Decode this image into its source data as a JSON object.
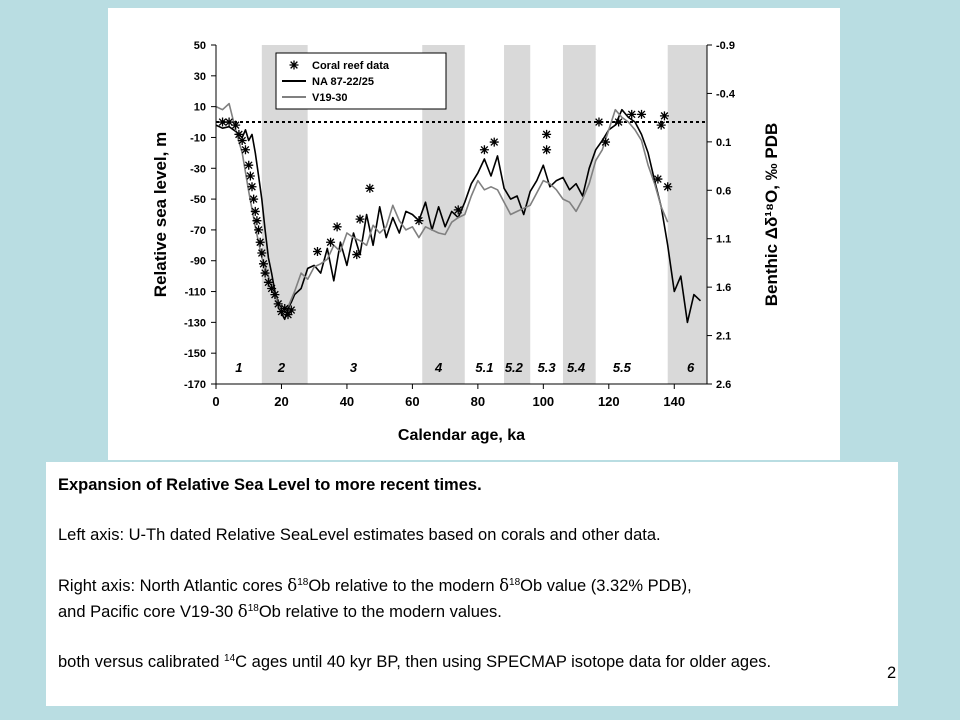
{
  "chart_data": {
    "type": "line",
    "xlabel": "Calendar age, ka",
    "ylabel": "Relative sea level, m",
    "ylabel_right": "Benthic Δδ¹⁸O, ‰ PDB",
    "xlim": [
      0,
      150
    ],
    "ylim": [
      -170,
      50
    ],
    "ylim_right": [
      -0.9,
      2.6
    ],
    "x_ticks": [
      "0",
      "20",
      "40",
      "60",
      "80",
      "100",
      "120",
      "140"
    ],
    "x_tick_values": [
      0,
      20,
      40,
      60,
      80,
      100,
      120,
      140
    ],
    "y_ticks": [
      "50",
      "30",
      "10",
      "-10",
      "-30",
      "-50",
      "-70",
      "-90",
      "-110",
      "-130",
      "-150",
      "-170"
    ],
    "y_tick_values": [
      50,
      30,
      10,
      -10,
      -30,
      -50,
      -70,
      -90,
      -110,
      -130,
      -150,
      -170
    ],
    "y_right_ticks": [
      "-0.9",
      "-0.4",
      "0.1",
      "0.6",
      "1.1",
      "1.6",
      "2.1",
      "2.6"
    ],
    "y_right_tick_values": [
      -0.9,
      -0.4,
      0.1,
      0.6,
      1.1,
      1.6,
      2.1,
      2.6
    ],
    "reference_line_y": 0,
    "legend_position": "top-left",
    "legend": [
      {
        "label": "Coral reef data",
        "marker": "asterisk"
      },
      {
        "label": "NA 87-22/25",
        "line_color": "#000000"
      },
      {
        "label": "V19-30",
        "line_color": "#808080"
      }
    ],
    "stages": [
      {
        "label": "1",
        "x": 7
      },
      {
        "label": "2",
        "x": 20,
        "x_start": 14,
        "x_end": 28
      },
      {
        "label": "3",
        "x": 42
      },
      {
        "label": "4",
        "x": 68,
        "x_start": 63,
        "x_end": 76
      },
      {
        "label": "5.1",
        "x": 82
      },
      {
        "label": "5.2",
        "x": 91,
        "x_start": 88,
        "x_end": 96
      },
      {
        "label": "5.3",
        "x": 101
      },
      {
        "label": "5.4",
        "x": 110,
        "x_start": 106,
        "x_end": 116
      },
      {
        "label": "5.5",
        "x": 124
      },
      {
        "label": "6",
        "x": 145,
        "x_start": 138,
        "x_end": 150
      }
    ],
    "series": [
      {
        "name": "NA 87-22/25",
        "color": "#000000",
        "x": [
          0,
          2,
          4,
          6,
          8,
          9,
          10,
          11,
          12,
          13,
          14,
          15,
          16,
          17,
          18,
          19,
          20,
          21,
          22,
          23,
          24,
          26,
          28,
          30,
          32,
          34,
          36,
          38,
          40,
          42,
          44,
          46,
          48,
          50,
          52,
          54,
          56,
          58,
          60,
          62,
          64,
          66,
          68,
          70,
          72,
          74,
          76,
          78,
          80,
          82,
          84,
          86,
          88,
          90,
          92,
          94,
          96,
          98,
          100,
          102,
          104,
          106,
          108,
          110,
          112,
          114,
          116,
          118,
          120,
          122,
          124,
          126,
          128,
          130,
          132,
          134,
          136,
          138,
          140,
          142,
          144,
          146,
          148
        ],
        "y": [
          -2,
          -4,
          -3,
          -6,
          -10,
          -5,
          -12,
          -8,
          -20,
          -35,
          -50,
          -70,
          -88,
          -98,
          -110,
          -118,
          -124,
          -128,
          -121,
          -117,
          -112,
          -108,
          -95,
          -93,
          -98,
          -82,
          -103,
          -78,
          -93,
          -72,
          -86,
          -60,
          -80,
          -55,
          -75,
          -62,
          -72,
          -58,
          -60,
          -64,
          -52,
          -70,
          -55,
          -68,
          -58,
          -62,
          -52,
          -40,
          -33,
          -24,
          -35,
          -22,
          -43,
          -50,
          -48,
          -60,
          -45,
          -38,
          -28,
          -42,
          -38,
          -36,
          -44,
          -40,
          -48,
          -30,
          -18,
          -12,
          -5,
          -2,
          8,
          3,
          0,
          -8,
          -20,
          -38,
          -55,
          -80,
          -110,
          -100,
          -130,
          -112,
          -116
        ]
      },
      {
        "name": "V19-30",
        "color": "#808080",
        "x": [
          0,
          2,
          4,
          6,
          8,
          10,
          12,
          14,
          16,
          18,
          20,
          22,
          24,
          26,
          28,
          30,
          32,
          34,
          36,
          38,
          40,
          42,
          44,
          46,
          48,
          50,
          52,
          54,
          56,
          58,
          60,
          62,
          64,
          66,
          68,
          70,
          72,
          74,
          76,
          78,
          80,
          82,
          84,
          86,
          88,
          90,
          92,
          94,
          96,
          98,
          100,
          102,
          104,
          106,
          108,
          110,
          112,
          114,
          116,
          118,
          120,
          122,
          124,
          126,
          128,
          130,
          132,
          134,
          136,
          138
        ],
        "y": [
          10,
          8,
          12,
          -5,
          -20,
          -45,
          -68,
          -88,
          -100,
          -112,
          -124,
          -120,
          -110,
          -98,
          -102,
          -94,
          -92,
          -89,
          -80,
          -84,
          -72,
          -75,
          -77,
          -80,
          -67,
          -72,
          -68,
          -54,
          -64,
          -70,
          -68,
          -75,
          -68,
          -70,
          -72,
          -73,
          -65,
          -62,
          -60,
          -48,
          -38,
          -44,
          -42,
          -44,
          -52,
          -60,
          -58,
          -56,
          -54,
          -46,
          -38,
          -40,
          -44,
          -50,
          -52,
          -58,
          -50,
          -40,
          -25,
          -18,
          -5,
          8,
          3,
          0,
          -5,
          -12,
          -28,
          -40,
          -55,
          -65
        ]
      }
    ],
    "coral_points": [
      {
        "x": 2,
        "y": 0
      },
      {
        "x": 4,
        "y": 0
      },
      {
        "x": 6,
        "y": -2
      },
      {
        "x": 7,
        "y": -8
      },
      {
        "x": 8,
        "y": -12
      },
      {
        "x": 9,
        "y": -18
      },
      {
        "x": 10,
        "y": -28
      },
      {
        "x": 10.5,
        "y": -35
      },
      {
        "x": 11,
        "y": -42
      },
      {
        "x": 11.5,
        "y": -50
      },
      {
        "x": 12,
        "y": -58
      },
      {
        "x": 12.5,
        "y": -64
      },
      {
        "x": 13,
        "y": -70
      },
      {
        "x": 13.5,
        "y": -78
      },
      {
        "x": 14,
        "y": -85
      },
      {
        "x": 14.5,
        "y": -92
      },
      {
        "x": 15,
        "y": -98
      },
      {
        "x": 16,
        "y": -104
      },
      {
        "x": 17,
        "y": -108
      },
      {
        "x": 18,
        "y": -112
      },
      {
        "x": 19,
        "y": -118
      },
      {
        "x": 20,
        "y": -123
      },
      {
        "x": 21,
        "y": -121
      },
      {
        "x": 22,
        "y": -125
      },
      {
        "x": 23,
        "y": -122
      },
      {
        "x": 31,
        "y": -84
      },
      {
        "x": 35,
        "y": -78
      },
      {
        "x": 37,
        "y": -68
      },
      {
        "x": 43,
        "y": -86
      },
      {
        "x": 44,
        "y": -63
      },
      {
        "x": 47,
        "y": -43
      },
      {
        "x": 62,
        "y": -64
      },
      {
        "x": 74,
        "y": -57
      },
      {
        "x": 82,
        "y": -18
      },
      {
        "x": 85,
        "y": -13
      },
      {
        "x": 101,
        "y": -8
      },
      {
        "x": 101,
        "y": -18
      },
      {
        "x": 117,
        "y": 0
      },
      {
        "x": 119,
        "y": -13
      },
      {
        "x": 123,
        "y": 0
      },
      {
        "x": 127,
        "y": 5
      },
      {
        "x": 130,
        "y": 5
      },
      {
        "x": 136,
        "y": -2
      },
      {
        "x": 137,
        "y": 4
      },
      {
        "x": 135,
        "y": -37
      },
      {
        "x": 138,
        "y": -42
      }
    ]
  },
  "caption": {
    "title": "Expansion of Relative Sea Level to more recent times.",
    "left_axis": "Left axis: U-Th dated Relative SeaLevel estimates based on corals and other data.",
    "right_axis_1": "Right axis: North Atlantic cores ",
    "right_axis_sup": "18",
    "right_axis_2": "Ob relative to the modern ",
    "right_axis_3": "Ob value (3.32% PDB),",
    "right_axis_4": "and Pacific core V19-30 ",
    "right_axis_5": "Ob relative to the modern values.",
    "both_1": "both versus calibrated ",
    "both_sup": "14",
    "both_2": "C ages until 40 kyr BP, then using SPECMAP isotope data for older ages.",
    "delta_symbol": "δ"
  },
  "slide_number": "2"
}
